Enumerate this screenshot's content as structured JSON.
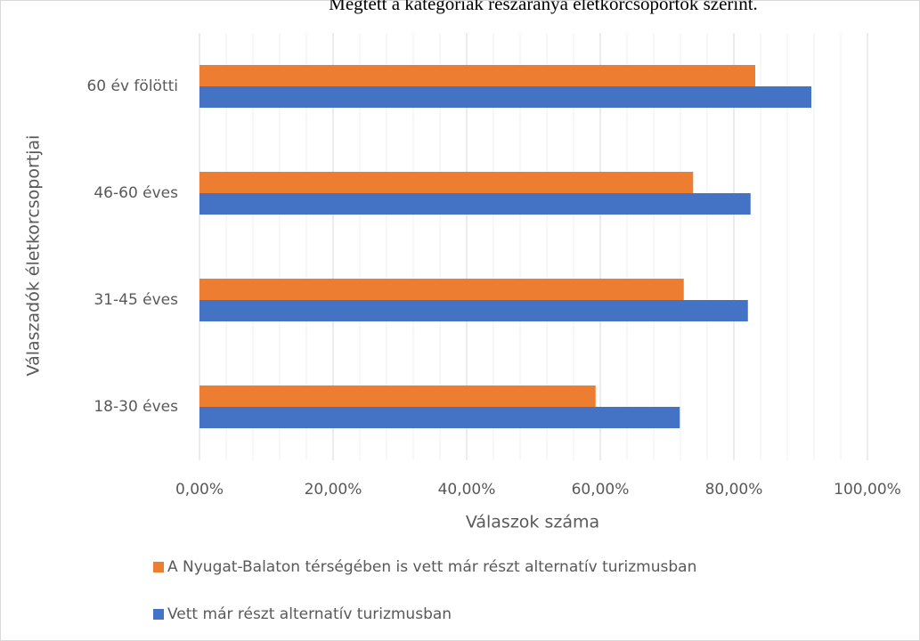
{
  "chart_data": {
    "type": "barh",
    "title": "Megtett a kategóriák részaránya életkorcsoportok szerint.",
    "categories": [
      "18-30 éves",
      "31-45 éves",
      "46-60 éves",
      "60 év fölötti"
    ],
    "series": [
      {
        "name": "A Nyugat-Balaton térségében is vett már részt alternatív turizmusban",
        "color": "#ed7d31",
        "values": [
          59.3,
          72.5,
          73.9,
          83.2
        ]
      },
      {
        "name": "Vett már részt alternatív turizmusban",
        "color": "#4472c4",
        "values": [
          71.9,
          82.1,
          82.5,
          91.6
        ]
      }
    ],
    "xlim": [
      0,
      100
    ],
    "xticks": [
      {
        "value": 0,
        "label": "0,00%"
      },
      {
        "value": 20,
        "label": "20,00%"
      },
      {
        "value": 40,
        "label": "40,00%"
      },
      {
        "value": 60,
        "label": "60,00%"
      },
      {
        "value": 80,
        "label": "80,00%"
      },
      {
        "value": 100,
        "label": "100,00%"
      }
    ],
    "xminor_ticks": [
      4,
      8,
      12,
      16,
      24,
      28,
      32,
      36,
      44,
      48,
      52,
      56,
      64,
      68,
      72,
      76,
      84,
      88,
      92,
      96
    ],
    "xlabel": "Válaszok száma",
    "ylabel": "Válaszadók életkorcsoportjai",
    "grid": true,
    "legend": "bottom"
  }
}
